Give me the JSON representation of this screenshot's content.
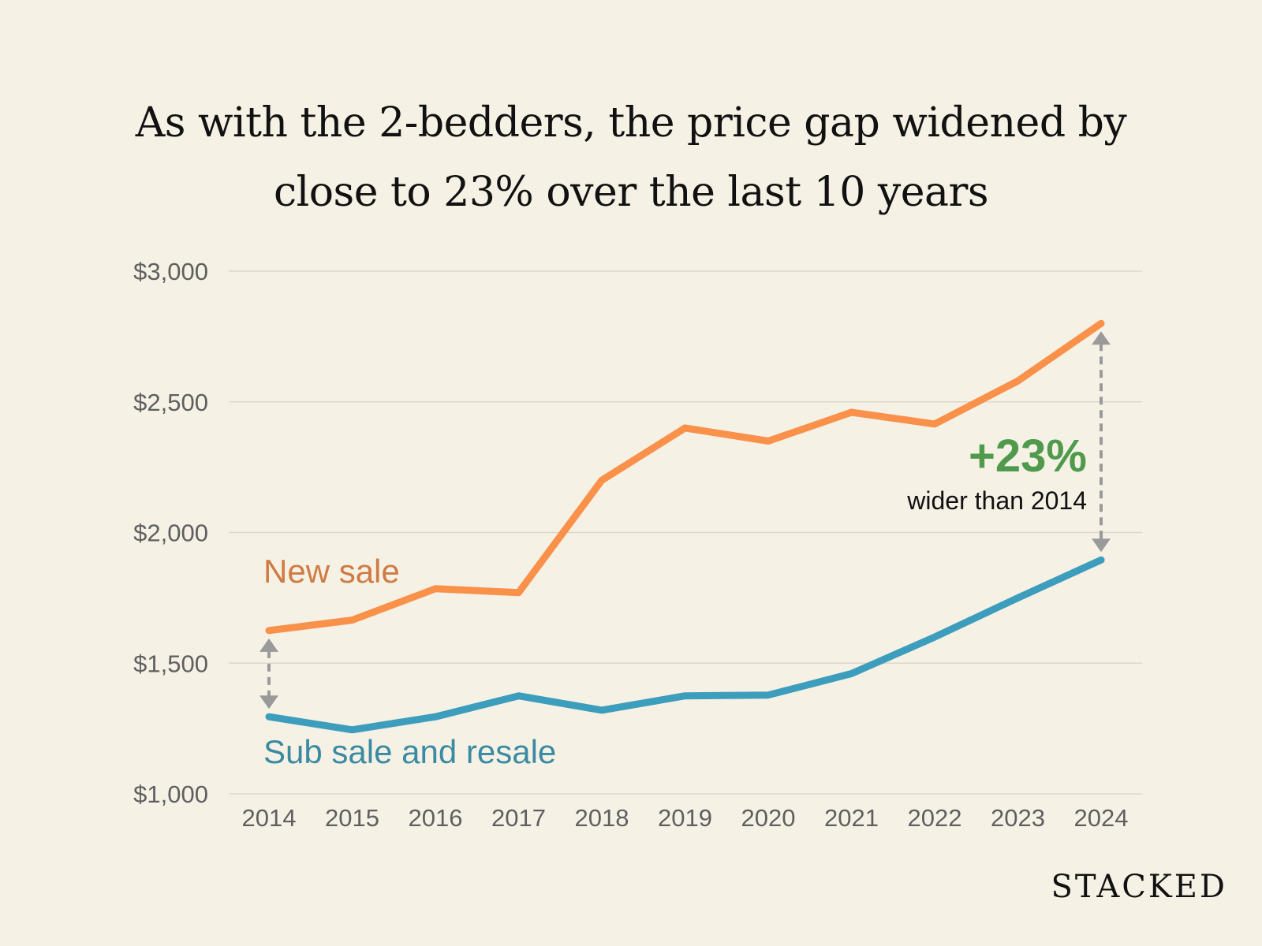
{
  "title": {
    "line1": "As with the 2-bedders, the price gap widened by",
    "line2": "close to 23% over the last 10 years"
  },
  "brand": "STACKED",
  "colors": {
    "new_sale": "#fa914a",
    "new_sale_label": "#cf7b43",
    "resale": "#3d9dbd",
    "resale_label": "#3b8aa3",
    "annotation_green": "#4f9a4d",
    "arrow_gray": "#9a9a9a",
    "grid": "#ddd7c8"
  },
  "chart_data": {
    "type": "line",
    "title": "As with the 2-bedders, the price gap widened by close to 23% over the last 10 years",
    "xlabel": "",
    "ylabel": "",
    "x": [
      "2014",
      "2015",
      "2016",
      "2017",
      "2018",
      "2019",
      "2020",
      "2021",
      "2022",
      "2023",
      "2024"
    ],
    "ylim": [
      1000,
      3000
    ],
    "yticks": [
      1000,
      1500,
      2000,
      2500,
      3000
    ],
    "ytick_labels": [
      "$1,000",
      "$1,500",
      "$2,000",
      "$2,500",
      "$3,000"
    ],
    "grid": true,
    "series": [
      {
        "name": "New sale",
        "values": [
          1625,
          1665,
          1785,
          1770,
          2200,
          2400,
          2350,
          2460,
          2415,
          2580,
          2800
        ]
      },
      {
        "name": "Sub sale and resale",
        "values": [
          1295,
          1245,
          1295,
          1375,
          1320,
          1375,
          1378,
          1460,
          1600,
          1750,
          1895
        ]
      }
    ],
    "annotations": {
      "gap_change": "+23%",
      "gap_note": "wider than 2014"
    }
  }
}
